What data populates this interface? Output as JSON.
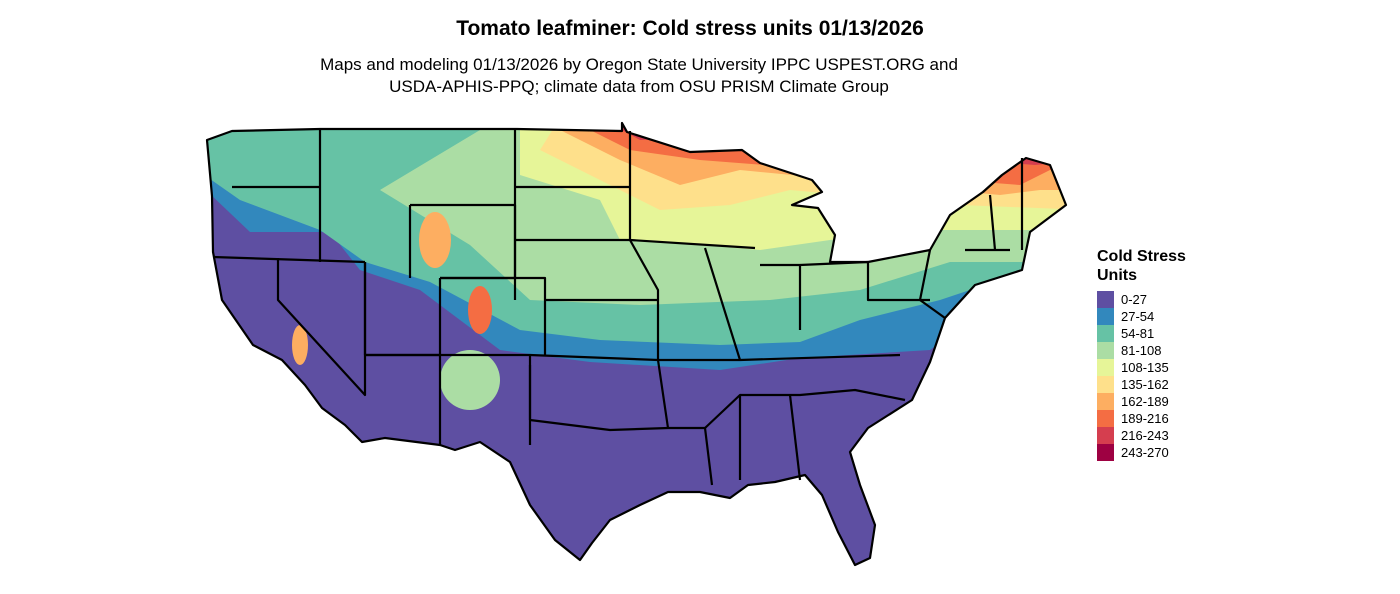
{
  "title": "Tomato leafminer: Cold stress units 01/13/2026",
  "subtitle_line1": "Maps and modeling 01/13/2026 by Oregon State University IPPC USPEST.ORG and",
  "subtitle_line2": "USDA-APHIS-PPQ; climate data from OSU PRISM Climate Group",
  "legend": {
    "title_line1": "Cold Stress",
    "title_line2": "Units",
    "items": [
      {
        "label": "0-27",
        "color": "#5E4FA2"
      },
      {
        "label": "27-54",
        "color": "#3288BD"
      },
      {
        "label": "54-81",
        "color": "#66C2A5"
      },
      {
        "label": "81-108",
        "color": "#ABDDA4"
      },
      {
        "label": "108-135",
        "color": "#E6F598"
      },
      {
        "label": "135-162",
        "color": "#FEE08B"
      },
      {
        "label": "162-189",
        "color": "#FDAE61"
      },
      {
        "label": "189-216",
        "color": "#F46D43"
      },
      {
        "label": "216-243",
        "color": "#D53E4F"
      },
      {
        "label": "243-270",
        "color": "#9E0142"
      }
    ]
  }
}
